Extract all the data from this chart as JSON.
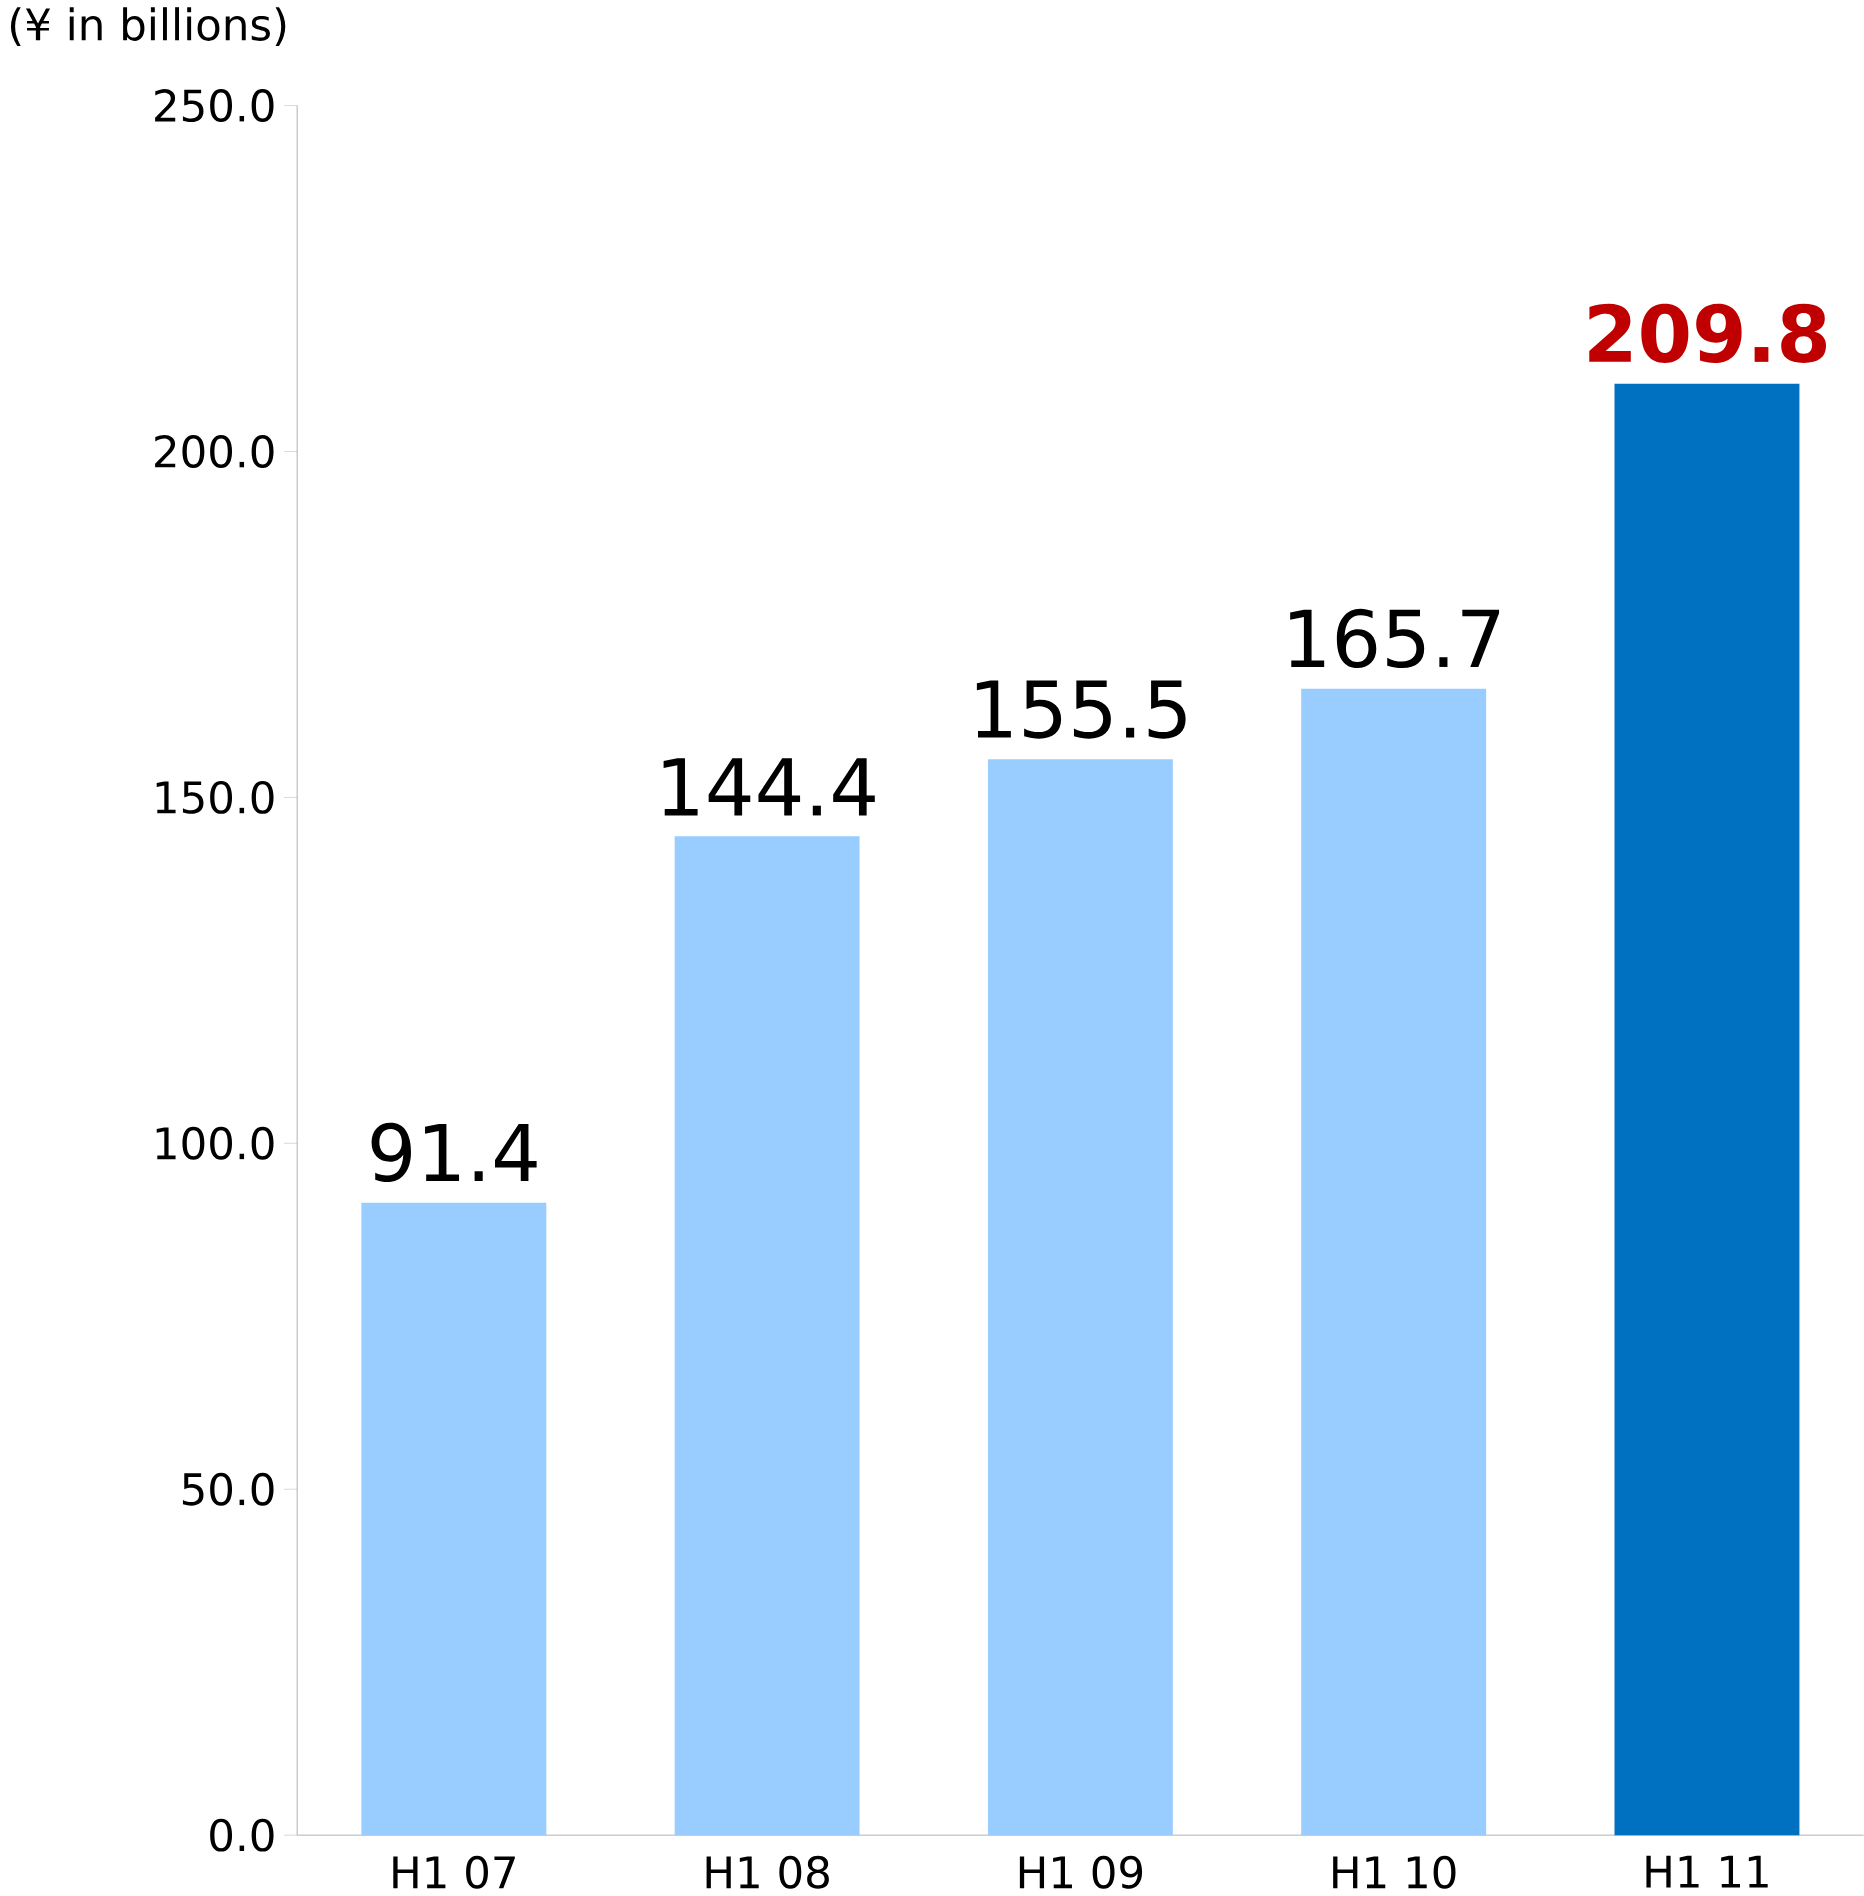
{
  "chart_data": {
    "type": "bar",
    "ylabel": "(¥ in billions)",
    "categories": [
      "H1 07",
      "H1 08",
      "H1 09",
      "H1 10",
      "H1 11"
    ],
    "values": [
      91.4,
      144.4,
      155.5,
      165.7,
      209.8
    ],
    "colors": [
      "#99ccff",
      "#99ccff",
      "#99ccff",
      "#99ccff",
      "#0070c0"
    ],
    "value_labels": [
      "91.4",
      "144.4",
      "155.5",
      "165.7",
      "**209.8**"
    ],
    "ylim": [
      0,
      250
    ],
    "yticks": [
      {
        "value": 0,
        "label": "0.0"
      },
      {
        "value": 50,
        "label": "50.0"
      },
      {
        "value": 100,
        "label": "100.0"
      },
      {
        "value": 150,
        "label": "150.0"
      },
      {
        "value": 200,
        "label": "200.0"
      },
      {
        "value": 250,
        "label": "250.0"
      }
    ],
    "grid": false
  }
}
